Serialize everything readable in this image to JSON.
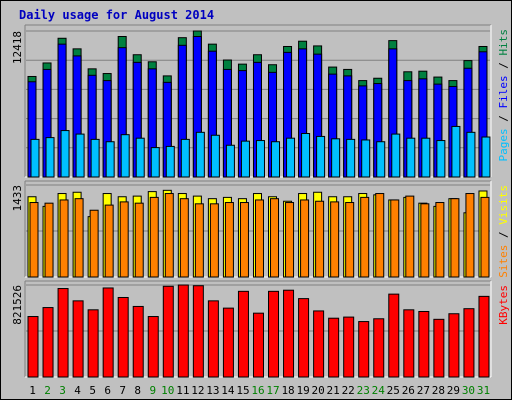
{
  "chart_data": [
    {
      "type": "bar",
      "title": "Daily usage for August 2014",
      "categories": [
        "1",
        "2",
        "3",
        "4",
        "5",
        "6",
        "7",
        "8",
        "9",
        "10",
        "11",
        "12",
        "13",
        "14",
        "15",
        "16",
        "17",
        "18",
        "19",
        "20",
        "21",
        "22",
        "23",
        "24",
        "25",
        "26",
        "27",
        "28",
        "29",
        "30",
        "31"
      ],
      "weekend_days": [
        "2",
        "3",
        "9",
        "10",
        "16",
        "17",
        "23",
        "24",
        "30",
        "31"
      ],
      "y_tick_label": "12418",
      "ylim": [
        0,
        12418
      ],
      "legend": [
        "Pages",
        "Files",
        "Hits"
      ],
      "series": [
        {
          "name": "Hits",
          "color": "#008040",
          "values": [
            8550,
            9700,
            11800,
            10900,
            9200,
            8800,
            11950,
            10400,
            9800,
            8600,
            11850,
            12418,
            11300,
            9950,
            9600,
            10400,
            9550,
            11100,
            11550,
            11150,
            9350,
            9150,
            8200,
            8400,
            11600,
            8950,
            9000,
            8500,
            8200,
            9900,
            11100
          ]
        },
        {
          "name": "Files",
          "color": "#0000ff",
          "values": [
            8100,
            9150,
            11300,
            10300,
            8650,
            8200,
            11000,
            9750,
            9200,
            8050,
            11200,
            11950,
            10700,
            9150,
            9050,
            9750,
            8900,
            10600,
            10900,
            10450,
            8750,
            8600,
            7750,
            7950,
            10900,
            8200,
            8350,
            7900,
            7700,
            9250,
            10650
          ]
        },
        {
          "name": "Pages",
          "color": "#00c0ff",
          "values": [
            3200,
            3350,
            3950,
            3650,
            3200,
            3000,
            3600,
            3300,
            2500,
            2600,
            3200,
            3800,
            3550,
            2700,
            3050,
            3100,
            3000,
            3300,
            3700,
            3450,
            3250,
            3200,
            3150,
            3000,
            3650,
            3300,
            3300,
            3100,
            4300,
            3800,
            3400
          ]
        }
      ]
    },
    {
      "type": "bar",
      "categories": [
        "1",
        "2",
        "3",
        "4",
        "5",
        "6",
        "7",
        "8",
        "9",
        "10",
        "11",
        "12",
        "13",
        "14",
        "15",
        "16",
        "17",
        "18",
        "19",
        "20",
        "21",
        "22",
        "23",
        "24",
        "25",
        "26",
        "27",
        "28",
        "29",
        "30",
        "31"
      ],
      "y_tick_label": "1433",
      "ylim": [
        0,
        1433
      ],
      "legend": [
        "Sites",
        "Visits"
      ],
      "series": [
        {
          "name": "Visits",
          "color": "#ffff00",
          "values": [
            1250,
            1100,
            1300,
            1320,
            940,
            1300,
            1250,
            1260,
            1330,
            1350,
            1300,
            1260,
            1220,
            1240,
            1220,
            1300,
            1250,
            1180,
            1300,
            1320,
            1250,
            1250,
            1300,
            1280,
            1200,
            1240,
            1150,
            1100,
            1220,
            1000,
            1340
          ]
        },
        {
          "name": "Sites",
          "color": "#ff8000",
          "values": [
            1160,
            1150,
            1200,
            1220,
            1040,
            1120,
            1170,
            1150,
            1240,
            1300,
            1220,
            1140,
            1140,
            1160,
            1160,
            1200,
            1220,
            1160,
            1200,
            1180,
            1170,
            1160,
            1240,
            1300,
            1200,
            1260,
            1140,
            1160,
            1220,
            1300,
            1240
          ]
        }
      ]
    },
    {
      "type": "bar",
      "categories": [
        "1",
        "2",
        "3",
        "4",
        "5",
        "6",
        "7",
        "8",
        "9",
        "10",
        "11",
        "12",
        "13",
        "14",
        "15",
        "16",
        "17",
        "18",
        "19",
        "20",
        "21",
        "22",
        "23",
        "24",
        "25",
        "26",
        "27",
        "28",
        "29",
        "30",
        "31"
      ],
      "y_tick_label": "821526",
      "ylim": [
        0,
        821526
      ],
      "legend": [
        "KBytes"
      ],
      "series": [
        {
          "name": "KBytes",
          "color": "#ff0000",
          "values": [
            540000,
            620000,
            790000,
            680000,
            600000,
            795000,
            710000,
            630000,
            540000,
            810000,
            821526,
            815000,
            680000,
            615000,
            765000,
            570000,
            765000,
            775000,
            700000,
            590000,
            525000,
            535000,
            495000,
            520000,
            740000,
            600000,
            585000,
            515000,
            565000,
            610000,
            720000
          ]
        }
      ]
    }
  ],
  "colors": {
    "frame_bg": "#c0c0c0",
    "title": "#0000c0",
    "weekday_label": "#000000",
    "weekend_label": "#008000",
    "grid": "#808080"
  }
}
